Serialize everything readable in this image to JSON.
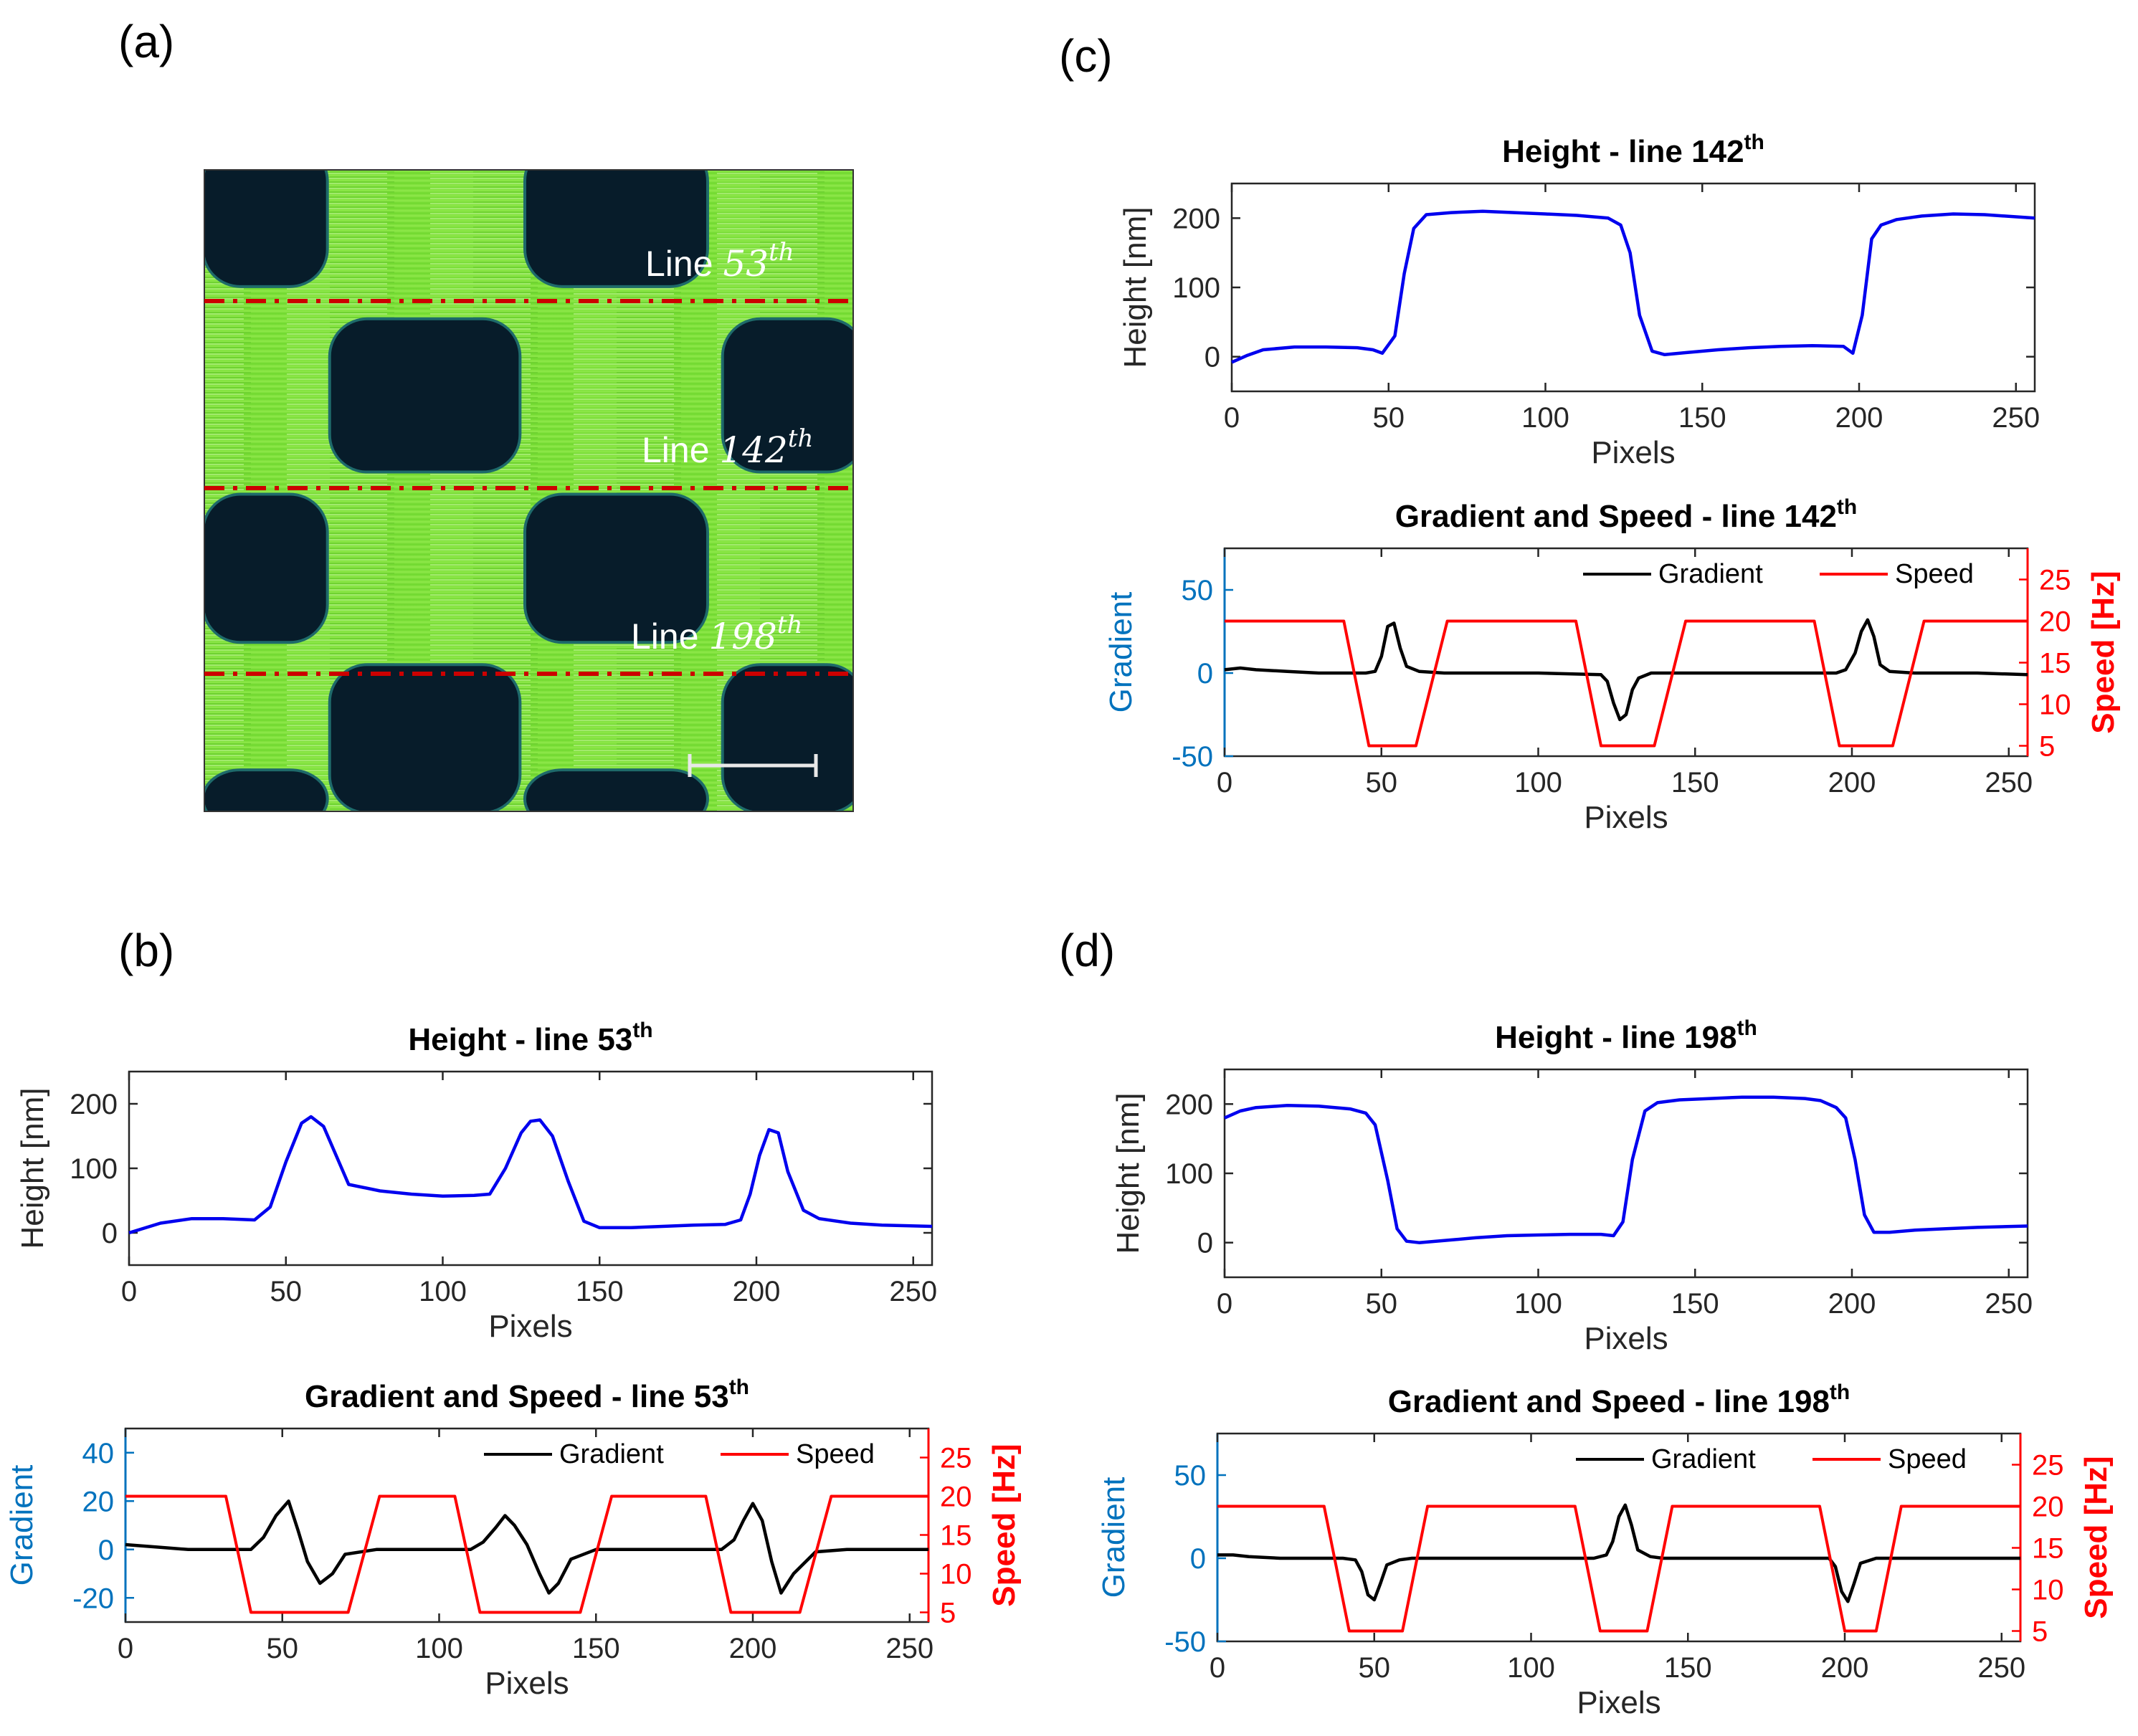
{
  "panel_labels": [
    "(a)",
    "(b)",
    "(c)",
    "(d)"
  ],
  "afm_image": {
    "lines": [
      {
        "text": "Line 53",
        "sup": "th",
        "row": 53
      },
      {
        "text": "Line 142",
        "sup": "th",
        "row": 142
      },
      {
        "text": "Line 198",
        "sup": "th",
        "row": 198
      }
    ],
    "colors": {
      "high": "#7fe03a",
      "low": "#071c2a",
      "line": "#cc0000"
    }
  },
  "chart_data": [
    {
      "id": "b-height",
      "type": "line",
      "title": "Height - line 53",
      "title_sup": "th",
      "xlabel": "Pixels",
      "ylabel": "Height [nm]",
      "xlim": [
        0,
        256
      ],
      "ylim": [
        -50,
        250
      ],
      "xticks": [
        0,
        50,
        100,
        150,
        200,
        250
      ],
      "yticks": [
        0,
        100,
        200
      ],
      "series": [
        {
          "color": "#0000ee",
          "x": [
            0,
            10,
            20,
            30,
            40,
            45,
            50,
            55,
            58,
            62,
            66,
            70,
            80,
            90,
            100,
            110,
            115,
            120,
            125,
            128,
            131,
            135,
            140,
            145,
            150,
            160,
            170,
            180,
            190,
            195,
            198,
            201,
            204,
            207,
            210,
            215,
            220,
            230,
            240,
            256
          ],
          "y": [
            0,
            15,
            22,
            22,
            20,
            40,
            110,
            170,
            180,
            165,
            120,
            75,
            65,
            60,
            57,
            58,
            60,
            100,
            155,
            173,
            175,
            150,
            80,
            18,
            8,
            8,
            10,
            12,
            13,
            20,
            60,
            120,
            160,
            155,
            95,
            35,
            22,
            15,
            12,
            10
          ]
        }
      ]
    },
    {
      "id": "b-grad",
      "type": "line",
      "title": "Gradient and Speed - line 53",
      "title_sup": "th",
      "xlabel": "Pixels",
      "ylabel": "Gradient",
      "y2label": "Speed [Hz]",
      "xlim": [
        0,
        256
      ],
      "ylim": [
        -30,
        50
      ],
      "y2lim": [
        3.75,
        28.75
      ],
      "xticks": [
        0,
        50,
        100,
        150,
        200,
        250
      ],
      "yticks": [
        -20,
        0,
        20,
        40
      ],
      "y2ticks": [
        5,
        10,
        15,
        20,
        25
      ],
      "legend": [
        "Gradient",
        "Speed"
      ],
      "series": [
        {
          "name": "Gradient",
          "axis": "left",
          "color": "#000000",
          "x": [
            0,
            10,
            20,
            30,
            40,
            44,
            48,
            52,
            55,
            58,
            62,
            66,
            70,
            80,
            90,
            100,
            110,
            114,
            118,
            121,
            124,
            128,
            132,
            135,
            138,
            142,
            150,
            160,
            170,
            180,
            190,
            194,
            197,
            200,
            203,
            206,
            209,
            213,
            220,
            230,
            240,
            256
          ],
          "y": [
            2,
            1,
            0,
            0,
            0,
            5,
            14,
            20,
            8,
            -5,
            -14,
            -10,
            -2,
            0,
            0,
            0,
            0,
            3,
            9,
            14,
            10,
            2,
            -10,
            -18,
            -14,
            -4,
            0,
            0,
            0,
            0,
            0,
            4,
            12,
            19,
            12,
            -5,
            -18,
            -10,
            -1,
            0,
            0,
            0
          ]
        },
        {
          "name": "Speed",
          "axis": "right",
          "color": "#ff0000",
          "x": [
            0,
            32,
            40,
            71,
            81,
            105,
            113,
            145,
            155,
            185,
            193,
            215,
            225,
            256
          ],
          "y": [
            20,
            20,
            5,
            5,
            20,
            20,
            5,
            5,
            20,
            20,
            5,
            5,
            20,
            20
          ]
        }
      ]
    },
    {
      "id": "c-height",
      "type": "line",
      "title": "Height - line 142",
      "title_sup": "th",
      "xlabel": "Pixels",
      "ylabel": "Height [nm]",
      "xlim": [
        0,
        256
      ],
      "ylim": [
        -50,
        250
      ],
      "xticks": [
        0,
        50,
        100,
        150,
        200,
        250
      ],
      "yticks": [
        0,
        100,
        200
      ],
      "series": [
        {
          "color": "#0000ee",
          "x": [
            0,
            5,
            10,
            20,
            30,
            40,
            45,
            48,
            52,
            55,
            58,
            62,
            70,
            80,
            90,
            100,
            110,
            120,
            124,
            127,
            130,
            134,
            138,
            145,
            155,
            165,
            175,
            185,
            195,
            198,
            201,
            204,
            207,
            212,
            220,
            230,
            240,
            256
          ],
          "y": [
            -8,
            2,
            10,
            14,
            14,
            13,
            10,
            5,
            30,
            120,
            185,
            205,
            208,
            210,
            208,
            206,
            204,
            200,
            190,
            150,
            60,
            8,
            3,
            6,
            10,
            13,
            15,
            16,
            15,
            5,
            60,
            170,
            190,
            198,
            203,
            206,
            205,
            200
          ]
        }
      ]
    },
    {
      "id": "c-grad",
      "type": "line",
      "title": "Gradient and Speed - line 142",
      "title_sup": "th",
      "xlabel": "Pixels",
      "ylabel": "Gradient",
      "y2label": "Speed [Hz]",
      "xlim": [
        0,
        256
      ],
      "ylim": [
        -50,
        75
      ],
      "y2lim": [
        3.75,
        28.75
      ],
      "xticks": [
        0,
        50,
        100,
        150,
        200,
        250
      ],
      "yticks": [
        -50,
        0,
        50
      ],
      "y2ticks": [
        5,
        10,
        15,
        20,
        25
      ],
      "legend": [
        "Gradient",
        "Speed"
      ],
      "series": [
        {
          "name": "Gradient",
          "axis": "left",
          "color": "#000000",
          "x": [
            0,
            5,
            10,
            20,
            30,
            40,
            45,
            48,
            50,
            52,
            54,
            56,
            58,
            62,
            70,
            80,
            100,
            120,
            122,
            124,
            126,
            128,
            130,
            132,
            136,
            140,
            160,
            180,
            195,
            198,
            201,
            203,
            205,
            207,
            209,
            212,
            220,
            240,
            256
          ],
          "y": [
            2,
            3,
            2,
            1,
            0,
            0,
            0,
            1,
            10,
            28,
            30,
            15,
            4,
            1,
            0,
            0,
            0,
            -1,
            -5,
            -18,
            -28,
            -25,
            -10,
            -3,
            0,
            0,
            0,
            0,
            0,
            2,
            12,
            25,
            32,
            22,
            5,
            1,
            0,
            0,
            -1
          ]
        },
        {
          "name": "Speed",
          "axis": "right",
          "color": "#ff0000",
          "x": [
            0,
            38,
            46,
            61,
            71,
            112,
            120,
            137,
            147,
            188,
            196,
            213,
            223,
            256
          ],
          "y": [
            20,
            20,
            5,
            5,
            20,
            20,
            5,
            5,
            20,
            20,
            5,
            5,
            20,
            20
          ]
        }
      ]
    },
    {
      "id": "d-height",
      "type": "line",
      "title": "Height - line 198",
      "title_sup": "th",
      "xlabel": "Pixels",
      "ylabel": "Height [nm]",
      "xlim": [
        0,
        256
      ],
      "ylim": [
        -50,
        250
      ],
      "xticks": [
        0,
        50,
        100,
        150,
        200,
        250
      ],
      "yticks": [
        0,
        100,
        200
      ],
      "series": [
        {
          "color": "#0000ee",
          "x": [
            0,
            5,
            10,
            20,
            30,
            40,
            45,
            48,
            52,
            55,
            58,
            62,
            70,
            80,
            90,
            100,
            110,
            120,
            124,
            127,
            130,
            134,
            138,
            145,
            155,
            165,
            175,
            185,
            190,
            195,
            198,
            201,
            204,
            207,
            212,
            220,
            230,
            240,
            256
          ],
          "y": [
            180,
            190,
            195,
            198,
            197,
            193,
            187,
            170,
            90,
            20,
            2,
            0,
            3,
            7,
            10,
            11,
            12,
            12,
            10,
            30,
            120,
            190,
            202,
            206,
            208,
            210,
            210,
            208,
            205,
            195,
            180,
            120,
            40,
            15,
            15,
            18,
            20,
            22,
            24
          ]
        }
      ]
    },
    {
      "id": "d-grad",
      "type": "line",
      "title": "Gradient and Speed - line 198",
      "title_sup": "th",
      "xlabel": "Pixels",
      "ylabel": "Gradient",
      "y2label": "Speed [Hz]",
      "xlim": [
        0,
        256
      ],
      "ylim": [
        -50,
        75
      ],
      "y2lim": [
        3.75,
        28.75
      ],
      "xticks": [
        0,
        50,
        100,
        150,
        200,
        250
      ],
      "yticks": [
        -50,
        0,
        50
      ],
      "y2ticks": [
        5,
        10,
        15,
        20,
        25
      ],
      "legend": [
        "Gradient",
        "Speed"
      ],
      "series": [
        {
          "name": "Gradient",
          "axis": "left",
          "color": "#000000",
          "x": [
            0,
            5,
            10,
            20,
            30,
            40,
            44,
            46,
            48,
            50,
            52,
            54,
            58,
            62,
            70,
            80,
            100,
            120,
            124,
            126,
            128,
            130,
            132,
            134,
            138,
            142,
            160,
            180,
            190,
            195,
            197,
            199,
            201,
            203,
            205,
            210,
            220,
            240,
            256
          ],
          "y": [
            2,
            2,
            1,
            0,
            0,
            0,
            -1,
            -8,
            -22,
            -25,
            -15,
            -4,
            -1,
            0,
            0,
            0,
            0,
            0,
            2,
            10,
            25,
            32,
            20,
            5,
            1,
            0,
            0,
            0,
            0,
            0,
            -5,
            -20,
            -26,
            -15,
            -3,
            0,
            0,
            0,
            0
          ]
        },
        {
          "name": "Speed",
          "axis": "right",
          "color": "#ff0000",
          "x": [
            0,
            34,
            42,
            59,
            67,
            114,
            122,
            137,
            145,
            192,
            200,
            210,
            218,
            256
          ],
          "y": [
            20,
            20,
            5,
            5,
            20,
            20,
            5,
            5,
            20,
            20,
            5,
            5,
            20,
            20
          ]
        }
      ]
    }
  ]
}
